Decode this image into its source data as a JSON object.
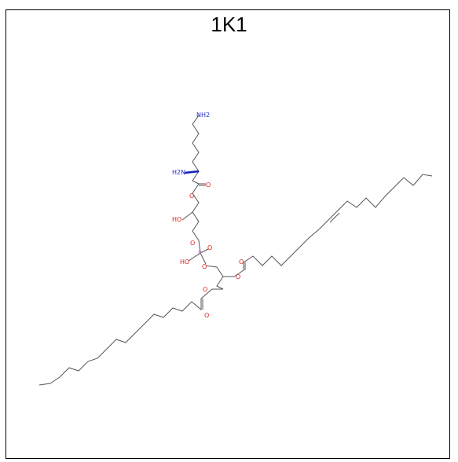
{
  "title": "1K1",
  "colors": {
    "bond": "#555555",
    "oxygen": "#e02020",
    "nitrogen": "#2030d0",
    "phosphorus": "#d070d0",
    "carbon_label": "#6abf4b"
  },
  "atom_labels": {
    "nh2_top": "NH2",
    "h2n": "H2N",
    "ho": "HO",
    "ho_p": "HO",
    "p": "P",
    "o": "O"
  }
}
